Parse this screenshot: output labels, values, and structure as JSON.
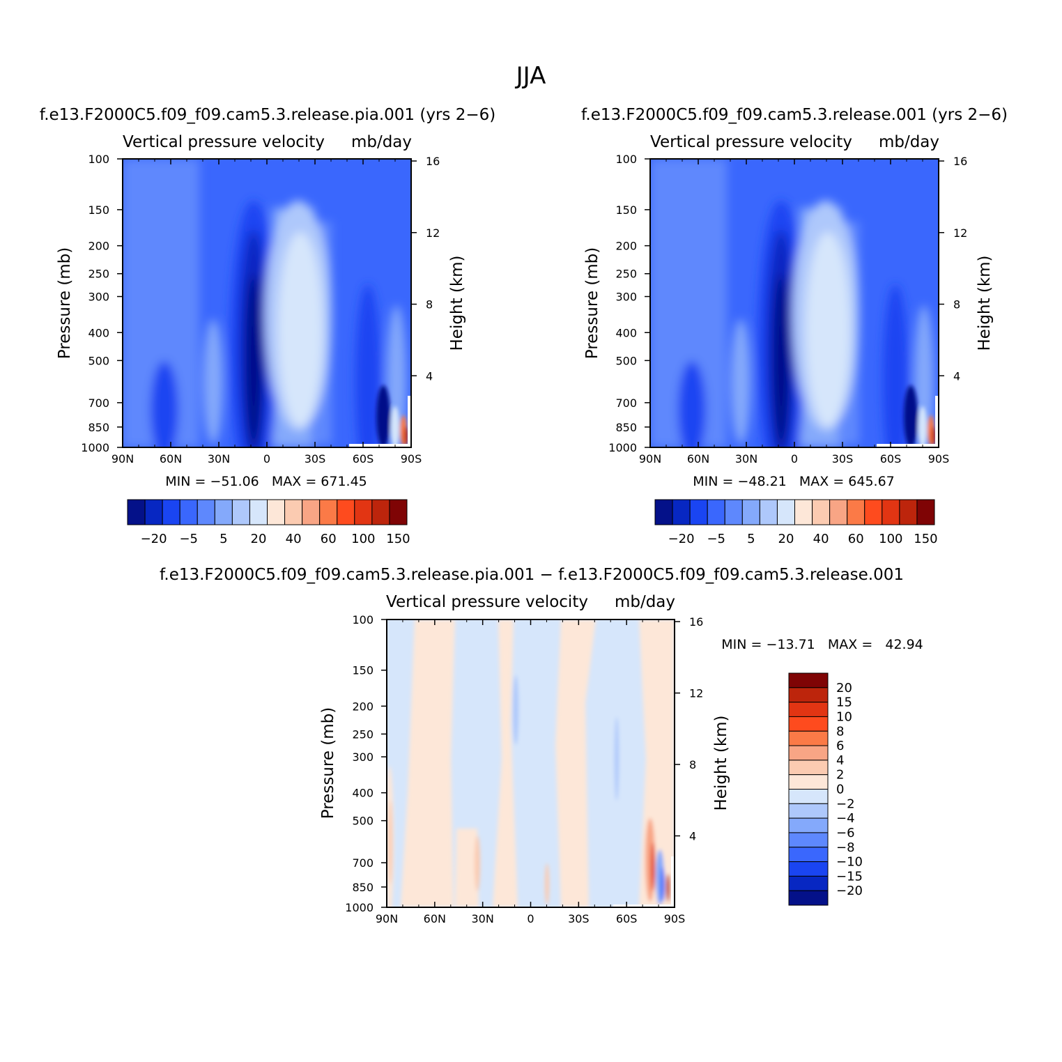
{
  "figure": {
    "title": "JJA"
  },
  "colors": {
    "positive_ramp": [
      "#fde7d8",
      "#fbcbb1",
      "#f8a585",
      "#fb7a47",
      "#fe4b1e",
      "#e23513",
      "#bd250c",
      "#7f0405"
    ],
    "negative_ramp": [
      "#d6e6fb",
      "#aec8fb",
      "#84a9fb",
      "#5e88fd",
      "#3a67fd",
      "#1a45f2",
      "#0727c2",
      "#041189"
    ],
    "frame": "#000000"
  },
  "chart_data": [
    {
      "type": "heatmap",
      "panel": "pia",
      "title": "f.e13.F2000C5.f09_f09.cam5.3.release.pia.001 (yrs 2−6)",
      "subtitle_left": "Vertical pressure velocity",
      "subtitle_right": "mb/day",
      "ylabel": "Pressure (mb)",
      "y2label": "Height (km)",
      "x_ticks": [
        "90N",
        "60N",
        "30N",
        "0",
        "30S",
        "60S",
        "90S"
      ],
      "y_ticks": [
        "100",
        "150",
        "200",
        "250",
        "300",
        "400",
        "500",
        "700",
        "850",
        "1000"
      ],
      "y2_ticks": [
        "4",
        "8",
        "12",
        "16"
      ],
      "stats": "MIN = −51.06   MAX = 671.45",
      "min": -51.06,
      "max": 671.45,
      "colorbar_ticks": [
        "−20",
        "−5",
        "5",
        "20",
        "40",
        "60",
        "100",
        "150"
      ],
      "features": [
        {
          "lat": 8,
          "p_top": 190,
          "p_bottom": 1000,
          "value": -20
        },
        {
          "lat": -22,
          "p_top": 170,
          "p_bottom": 930,
          "value": -2
        },
        {
          "lat": -68,
          "p_top": 420,
          "p_bottom": 1000,
          "value": -10
        },
        {
          "lat": -87,
          "p_top": 700,
          "p_bottom": 1000,
          "value": 150
        }
      ]
    },
    {
      "type": "heatmap",
      "panel": "control",
      "title": "f.e13.F2000C5.f09_f09.cam5.3.release.001 (yrs 2−6)",
      "subtitle_left": "Vertical pressure velocity",
      "subtitle_right": "mb/day",
      "ylabel": "Pressure (mb)",
      "y2label": "Height (km)",
      "x_ticks": [
        "90N",
        "60N",
        "30N",
        "0",
        "30S",
        "60S",
        "90S"
      ],
      "y_ticks": [
        "100",
        "150",
        "200",
        "250",
        "300",
        "400",
        "500",
        "700",
        "850",
        "1000"
      ],
      "y2_ticks": [
        "4",
        "8",
        "12",
        "16"
      ],
      "stats": "MIN = −48.21   MAX = 645.67",
      "min": -48.21,
      "max": 645.67,
      "colorbar_ticks": [
        "−20",
        "−5",
        "5",
        "20",
        "40",
        "60",
        "100",
        "150"
      ],
      "features": [
        {
          "lat": 8,
          "p_top": 190,
          "p_bottom": 1000,
          "value": -20
        },
        {
          "lat": -22,
          "p_top": 170,
          "p_bottom": 930,
          "value": -2
        },
        {
          "lat": -68,
          "p_top": 420,
          "p_bottom": 1000,
          "value": -10
        },
        {
          "lat": -87,
          "p_top": 700,
          "p_bottom": 1000,
          "value": 150
        }
      ]
    },
    {
      "type": "heatmap",
      "panel": "difference",
      "title": "f.e13.F2000C5.f09_f09.cam5.3.release.pia.001 − f.e13.F2000C5.f09_f09.cam5.3.release.001",
      "subtitle_left": "Vertical pressure velocity",
      "subtitle_right": "mb/day",
      "ylabel": "Pressure (mb)",
      "y2label": "Height (km)",
      "x_ticks": [
        "90N",
        "60N",
        "30N",
        "0",
        "30S",
        "60S",
        "90S"
      ],
      "y_ticks": [
        "100",
        "150",
        "200",
        "250",
        "300",
        "400",
        "500",
        "700",
        "850",
        "1000"
      ],
      "y2_ticks": [
        "4",
        "8",
        "12",
        "16"
      ],
      "stats": "MIN = −13.71   MAX =   42.94",
      "min": -13.71,
      "max": 42.94,
      "colorbar_ticks": [
        "20",
        "15",
        "10",
        "8",
        "6",
        "4",
        "2",
        "0",
        "−2",
        "−4",
        "−6",
        "−8",
        "−10",
        "−15",
        "−20"
      ]
    }
  ]
}
